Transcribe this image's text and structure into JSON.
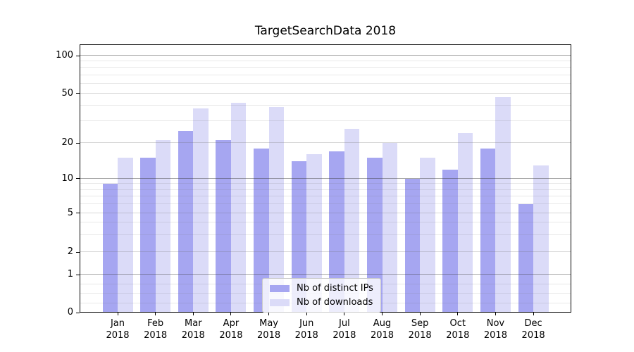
{
  "chart_data": {
    "type": "bar",
    "title": "TargetSearchData 2018",
    "categories": [
      "Jan 2018",
      "Feb 2018",
      "Mar 2018",
      "Apr 2018",
      "May 2018",
      "Jun 2018",
      "Jul 2018",
      "Aug 2018",
      "Sep 2018",
      "Oct 2018",
      "Nov 2018",
      "Dec 2018"
    ],
    "series": [
      {
        "name": "Nb of distinct IPs",
        "color": "#a6a6f1",
        "values": [
          9,
          15,
          25,
          21,
          18,
          14,
          17,
          15,
          10,
          12,
          18,
          6
        ]
      },
      {
        "name": "Nb of downloads",
        "color": "#dbdbf8",
        "values": [
          15,
          21,
          38,
          42,
          39,
          16,
          26,
          20,
          15,
          24,
          47,
          13
        ]
      }
    ],
    "yscale": "symlog",
    "y_ticks": [
      0,
      1,
      2,
      5,
      10,
      20,
      50,
      100
    ],
    "ylim": [
      0,
      123
    ],
    "xlabel": "",
    "ylabel": "",
    "grid": true,
    "legend_position": "lower center"
  }
}
